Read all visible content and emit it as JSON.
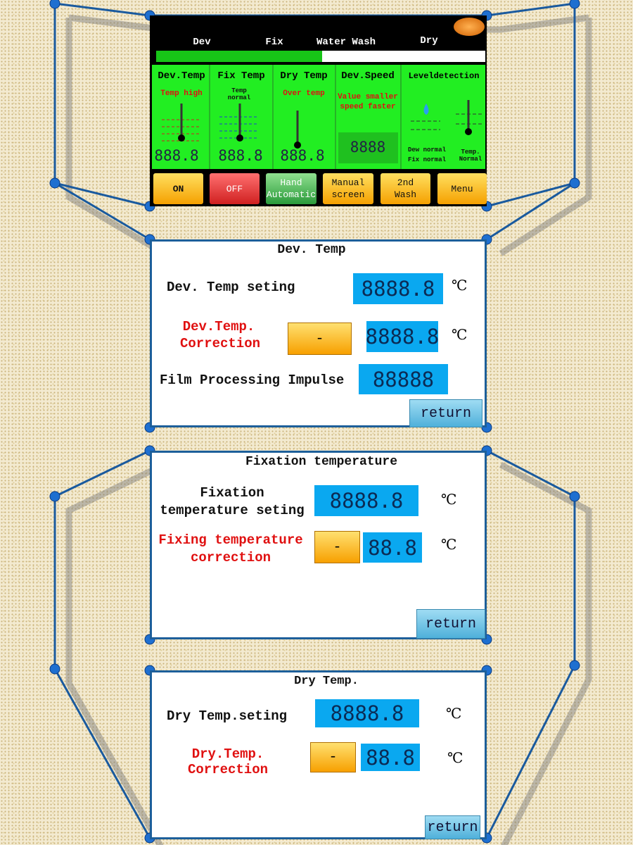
{
  "main_screen": {
    "tabs": [
      "Dev",
      "Fix",
      "Water Wash",
      "Dry"
    ],
    "columns": [
      {
        "title": "Dev.Temp",
        "status": [
          "Temp high"
        ],
        "reading": "888.8"
      },
      {
        "title": "Fix Temp",
        "status": [
          "Temp",
          "normal"
        ],
        "reading": "888.8"
      },
      {
        "title": "Dry Temp",
        "status": [
          "Over temp"
        ],
        "reading": "888.8"
      },
      {
        "title": "Dev.Speed",
        "status": [
          "Value smaller",
          "speed faster"
        ],
        "reading": "8888"
      },
      {
        "title": "Leveldetection",
        "status": [
          "Dew normal",
          "Fix normal"
        ],
        "status2": [
          "Temp.",
          "Normal"
        ]
      }
    ],
    "buttons": [
      [
        "ON"
      ],
      [
        "OFF"
      ],
      [
        "Hand",
        "Automatic"
      ],
      [
        "Manual",
        "screen"
      ],
      [
        "2nd",
        "Wash"
      ],
      [
        "Menu"
      ]
    ]
  },
  "dev_temp_screen": {
    "title": "Dev. Temp",
    "setting": {
      "label": "Dev. Temp seting",
      "value": "8888.8",
      "unit": "℃"
    },
    "correction": {
      "label": [
        "Dev.Temp.",
        "Correction"
      ],
      "button": "-",
      "value": "8888.8",
      "unit": "℃"
    },
    "impulse": {
      "label": "Film Processing Impulse",
      "value": "88888"
    },
    "return": "return"
  },
  "fix_temp_screen": {
    "title": "Fixation temperature",
    "setting": {
      "label": [
        "Fixation",
        "temperature seting"
      ],
      "value": "8888.8",
      "unit": "℃"
    },
    "correction": {
      "label": [
        "Fixing temperature",
        "correction"
      ],
      "button": "-",
      "value": "88.8",
      "unit": "℃"
    },
    "return": "return"
  },
  "dry_temp_screen": {
    "title": "Dry Temp.",
    "setting": {
      "label": "Dry Temp.seting",
      "value": "8888.8",
      "unit": "℃"
    },
    "correction": {
      "label": [
        "Dry.Temp.",
        "Correction"
      ],
      "button": "-",
      "value": "88.8",
      "unit": "℃"
    },
    "return": "return"
  }
}
